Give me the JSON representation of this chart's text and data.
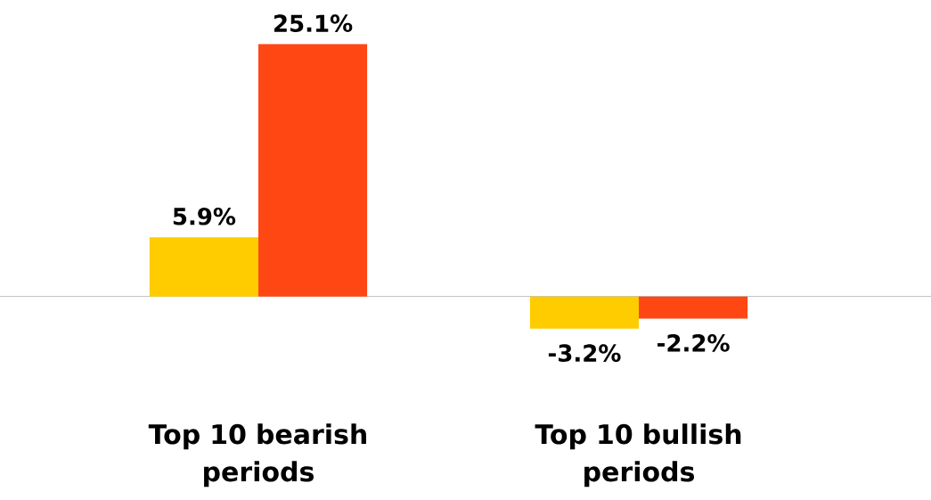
{
  "chart_data": {
    "type": "bar",
    "categories": [
      "Top 10 bearish periods",
      "Top 10 bullish periods"
    ],
    "series": [
      {
        "color": "#ffcc00",
        "values": [
          5.9,
          -3.2
        ],
        "value_labels": [
          "5.9%",
          "-3.2%"
        ]
      },
      {
        "color": "#ff4713",
        "values": [
          25.1,
          -2.2
        ],
        "value_labels": [
          "25.1%",
          "-2.2%"
        ]
      }
    ]
  }
}
